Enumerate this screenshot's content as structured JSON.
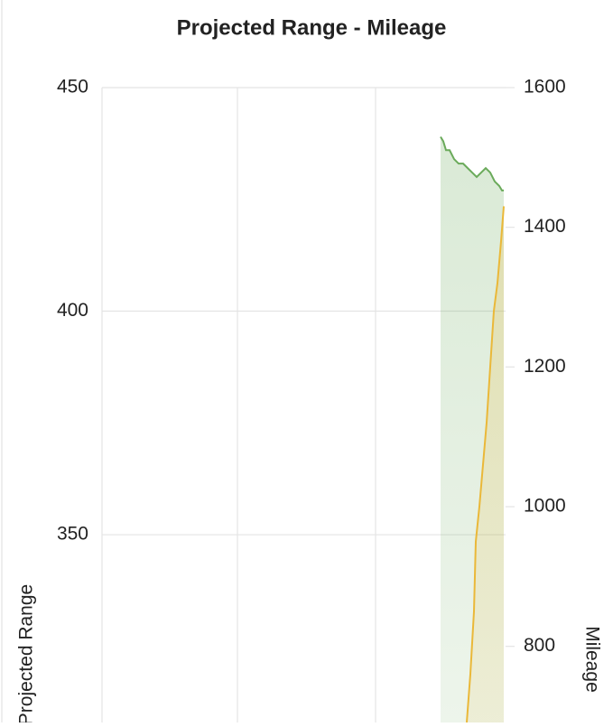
{
  "chart_data": {
    "type": "line",
    "title": "Projected Range - Mileage",
    "ylabel": "Projected Range",
    "y2label": "Mileage",
    "xlim": [
      0,
      447
    ],
    "ylim": [
      308,
      450
    ],
    "yticks": [
      350,
      400,
      450
    ],
    "y2lim": [
      691,
      1600
    ],
    "y2ticks": [
      800,
      1000,
      1200,
      1400,
      1600
    ],
    "grid": true,
    "fill": true,
    "series": [
      {
        "color": "#6aaa5a",
        "axis": "y",
        "x": [
          375,
          378,
          381,
          385,
          390,
          395,
          400,
          405,
          410,
          415,
          420,
          425,
          430,
          435,
          440,
          443,
          445
        ],
        "values": [
          439,
          438,
          436,
          436,
          434,
          433,
          433,
          432,
          431,
          430,
          431,
          432,
          431,
          429,
          428,
          427,
          427
        ]
      },
      {
        "color": "#eab839",
        "axis": "y2",
        "x": [
          404,
          408,
          412,
          414,
          418,
          422,
          426,
          430,
          434,
          438,
          442,
          445
        ],
        "values": [
          691,
          760,
          850,
          950,
          1000,
          1060,
          1120,
          1200,
          1280,
          1320,
          1380,
          1430
        ]
      }
    ]
  }
}
